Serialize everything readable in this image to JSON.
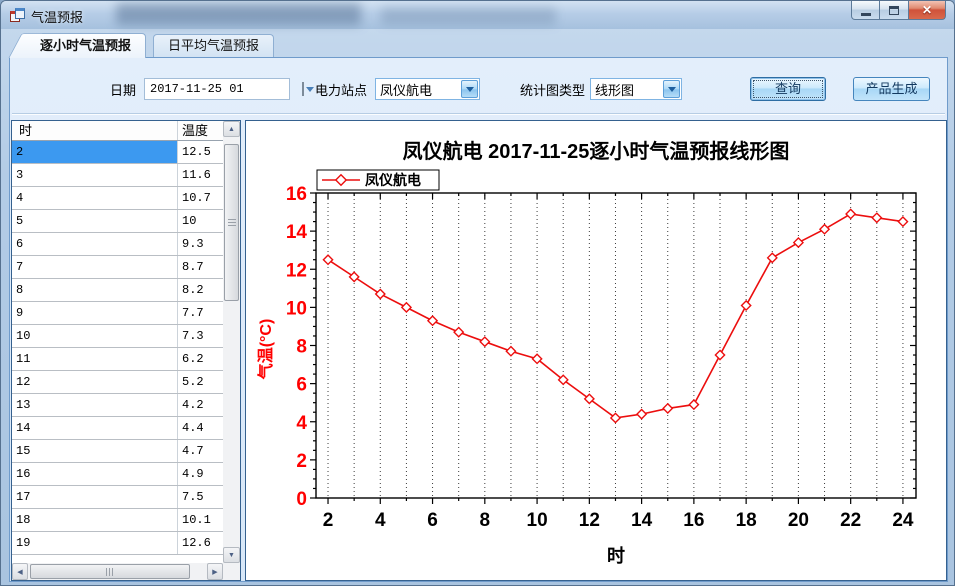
{
  "window": {
    "title": "气温预报"
  },
  "icons": {
    "close": "✕",
    "scroll_up": "▲",
    "scroll_down": "▼",
    "scroll_left": "◀",
    "scroll_right": "▶"
  },
  "tabs": [
    {
      "label": "逐小时气温预报",
      "active": true
    },
    {
      "label": "日平均气温预报",
      "active": false
    }
  ],
  "toolbar": {
    "date_label": "日期",
    "date_value": "2017-11-25 01",
    "station_label": "电力站点",
    "station_value": "凤仪航电",
    "chart_type_label": "统计图类型",
    "chart_type_value": "线形图",
    "query_button": "查询",
    "generate_button": "产品生成"
  },
  "table": {
    "columns": [
      "时",
      "温度"
    ],
    "selected_row_index": 0,
    "rows": [
      [
        "2",
        "12.5"
      ],
      [
        "3",
        "11.6"
      ],
      [
        "4",
        "10.7"
      ],
      [
        "5",
        "10"
      ],
      [
        "6",
        "9.3"
      ],
      [
        "7",
        "8.7"
      ],
      [
        "8",
        "8.2"
      ],
      [
        "9",
        "7.7"
      ],
      [
        "10",
        "7.3"
      ],
      [
        "11",
        "6.2"
      ],
      [
        "12",
        "5.2"
      ],
      [
        "13",
        "4.2"
      ],
      [
        "14",
        "4.4"
      ],
      [
        "15",
        "4.7"
      ],
      [
        "16",
        "4.9"
      ],
      [
        "17",
        "7.5"
      ],
      [
        "18",
        "10.1"
      ],
      [
        "19",
        "12.6"
      ]
    ]
  },
  "chart_data": {
    "type": "line",
    "title": "凤仪航电 2017-11-25逐小时气温预报线形图",
    "xlabel": "时",
    "ylabel": "气温(°C)",
    "x": [
      2,
      3,
      4,
      5,
      6,
      7,
      8,
      9,
      10,
      11,
      12,
      13,
      14,
      15,
      16,
      17,
      18,
      19,
      20,
      21,
      22,
      23,
      24
    ],
    "series": [
      {
        "name": "凤仪航电",
        "values": [
          12.5,
          11.6,
          10.7,
          10,
          9.3,
          8.7,
          8.2,
          7.7,
          7.3,
          6.2,
          5.2,
          4.2,
          4.4,
          4.7,
          4.9,
          7.5,
          10.1,
          12.6,
          13.4,
          14.1,
          14.9,
          14.7,
          14.5
        ]
      }
    ],
    "xlim": [
      1.54,
      24.5
    ],
    "ylim": [
      0,
      16
    ],
    "x_major_ticks": [
      2,
      4,
      6,
      8,
      10,
      12,
      14,
      16,
      18,
      20,
      22,
      24
    ],
    "y_major_ticks": [
      0,
      2,
      4,
      6,
      8,
      10,
      12,
      14,
      16
    ],
    "grid": "vertical-dotted",
    "legend_position": "top-left",
    "line_color": "#ec0e0e",
    "marker": "open-diamond",
    "y_tick_label_color": "#ff0000",
    "x_tick_label_color": "#000000"
  }
}
